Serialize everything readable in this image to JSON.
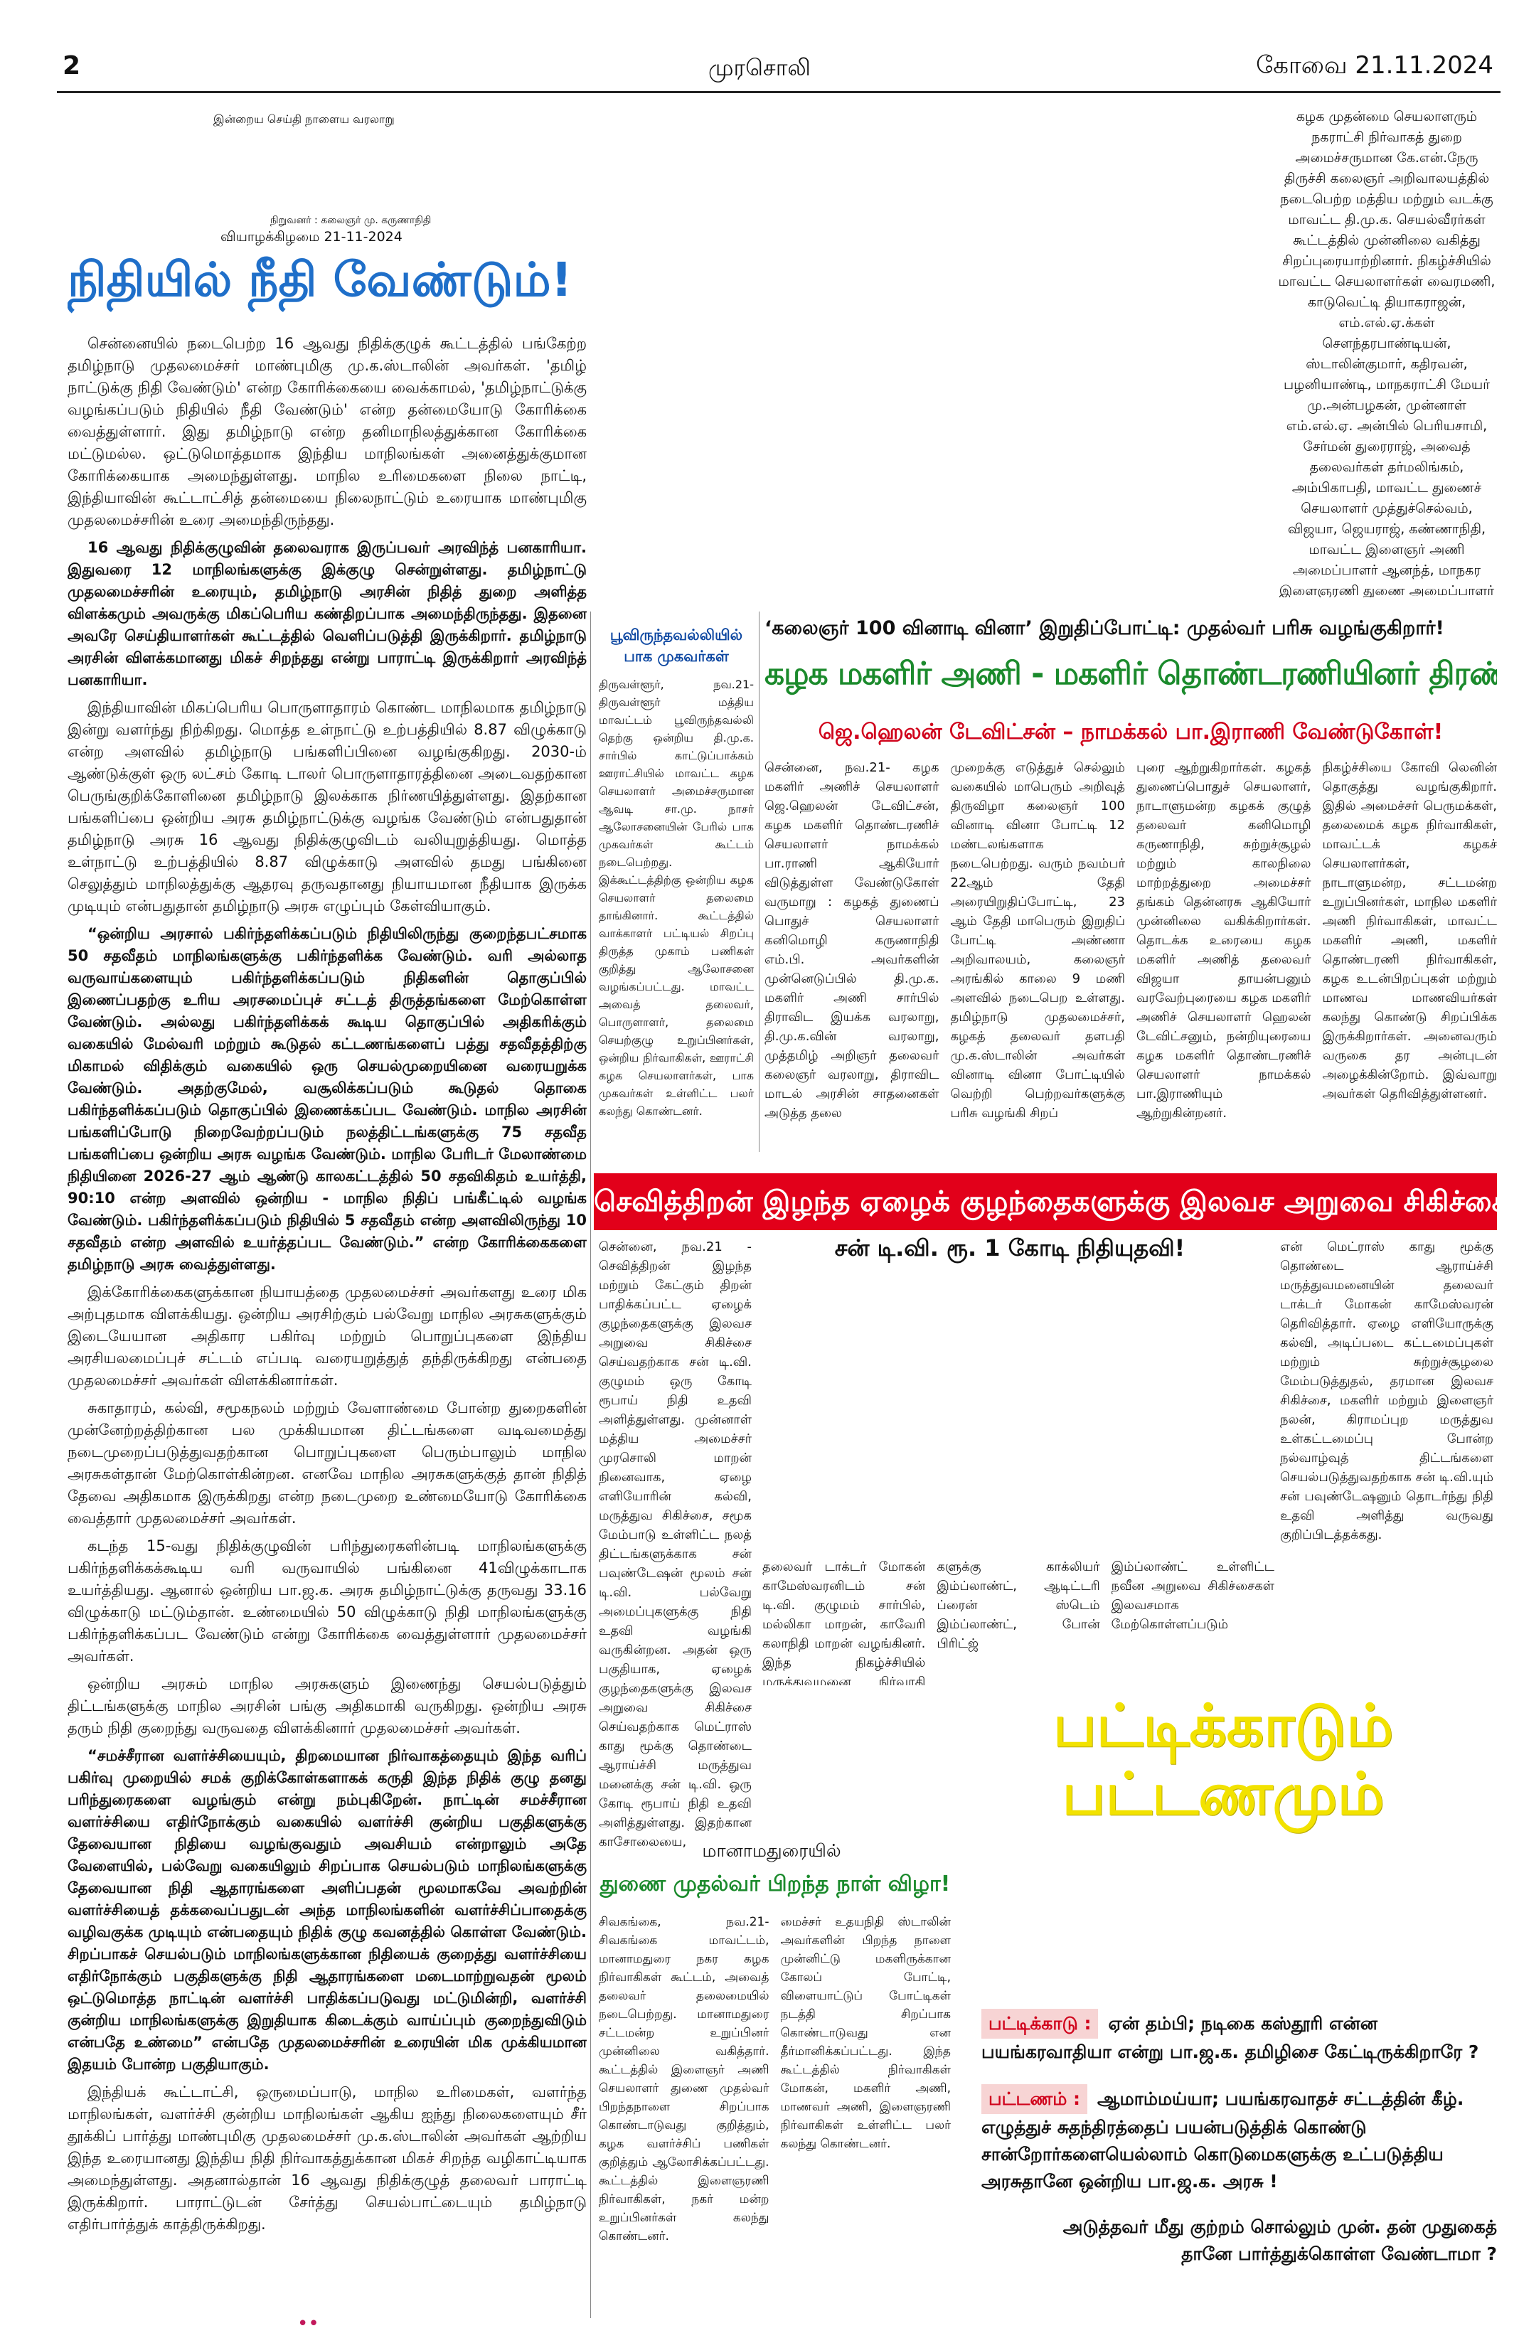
{
  "header": {
    "page": "2",
    "paper": "முரசொலி",
    "dateline": "கோவை 21.11.2024"
  },
  "masthead": {
    "motto": "இன்றைய செய்தி நாளைய வரலாறு",
    "founder": "நிறுவனர் : கலைஞர் மு. கருணாநிதி",
    "day": "வியாழக்கிழமை 21-11-2024"
  },
  "editorial": {
    "title": "நிதியில் நீதி வேண்டும்!",
    "paragraphs": [
      "சென்னையில் நடைபெற்ற 16 ஆவது நிதிக்குழுக் கூட்டத்தில் பங்கேற்ற தமிழ்நாடு முதலமைச்சர் மாண்புமிகு மு.க.ஸ்டாலின் அவர்கள். 'தமிழ் நாட்டுக்கு நிதி வேண்டும்' என்ற கோரிக்கையை வைக்காமல், 'தமிழ்நாட்டுக்கு வழங்கப்படும் நிதியில் நீதி வேண்டும்' என்ற தன்மையோடு கோரிக்கை வைத்துள்ளார். இது தமிழ்நாடு என்ற தனிமாநிலத்துக்கான கோரிக்கை மட்டுமல்ல. ஒட்டுமொத்தமாக இந்திய மாநிலங்கள் அனைத்துக்குமான கோரிக்கையாக அமைந்துள்ளது. மாநில உரிமைகளை நிலை நாட்டி, இந்தியாவின் கூட்டாட்சித் தன்மையை நிலைநாட்டும் உரையாக மாண்புமிகு முதலமைச்சரின் உரை அமைந்திருந்தது.",
      "16 ஆவது நிதிக்குழுவின் தலைவராக இருப்பவர் அரவிந்த் பனகாரியா. இதுவரை 12 மாநிலங்களுக்கு இக்குழு சென்றுள்ளது. தமிழ்நாட்டு முதலமைச்சரின் உரையும், தமிழ்நாடு அரசின் நிதித் துறை அளித்த விளக்கமும் அவருக்கு மிகப்பெரிய கண்திறப்பாக அமைந்திருந்தது. இதனை அவரே செய்தியாளர்கள் கூட்டத்தில் வெளிப்படுத்தி இருக்கிறார். தமிழ்நாடு அரசின் விளக்கமானது மிகச் சிறந்தது என்று பாராட்டி இருக்கிறார் அரவிந்த் பனகாரியா.",
      "இந்தியாவின் மிகப்பெரிய பொருளாதாரம் கொண்ட மாநிலமாக தமிழ்நாடு இன்று வளர்ந்து நிற்கிறது. மொத்த உள்நாட்டு உற்பத்தியில் 8.87 விழுக்காடு என்ற அளவில் தமிழ்நாடு பங்களிப்பினை வழங்குகிறது. 2030-ம் ஆண்டுக்குள் ஒரு லட்சம் கோடி டாலர் பொருளாதாரத்தினை அடைவதற்கான பெருங்குறிக்கோளினை தமிழ்நாடு இலக்காக நிர்ணயித்துள்ளது. இதற்கான பங்களிப்பை ஒன்றிய அரசு தமிழ்நாட்டுக்கு வழங்க வேண்டும் என்பதுதான் தமிழ்நாடு அரசு 16 ஆவது நிதிக்குழுவிடம் வலியுறுத்தியது. மொத்த உள்நாட்டு உற்பத்தியில் 8.87 விழுக்காடு அளவில் தமது பங்கினை செலுத்தும் மாநிலத்துக்கு ஆதரவு தருவதானது நியாயமான நீதியாக இருக்க முடியும் என்பதுதான் தமிழ்நாடு அரசு எழுப்பும் கேள்வியாகும்.",
      "“ஒன்றிய அரசால் பகிர்ந்தளிக்கப்படும் நிதியிலிருந்து குறைந்தபட்சமாக 50 சதவீதம் மாநிலங்களுக்கு பகிர்ந்தளிக்க வேண்டும். வரி அல்லாத வருவாய்களையும் பகிர்ந்தளிக்கப்படும் நிதிகளின் தொகுப்பில் இணைப்பதற்கு உரிய அரசமைப்புச் சட்டத் திருத்தங்களை மேற்கொள்ள வேண்டும். அல்லது பகிர்ந்தளிக்கக் கூடிய தொகுப்பில் அதிகரிக்கும் வகையில் மேல்வரி மற்றும் கூடுதல் கட்டணங்களைப் பத்து சதவீதத்திற்கு மிகாமல் விதிக்கும் வகையில் ஒரு செயல்முறையினை வரையறுக்க வேண்டும். அதற்குமேல், வசூலிக்கப்படும் கூடுதல் தொகை பகிர்ந்தளிக்கப்படும் தொகுப்பில் இணைக்கப்பட வேண்டும். மாநில அரசின் பங்களிப்போடு நிறைவேற்றப்படும் நலத்திட்டங்களுக்கு 75 சதவீத பங்களிப்பை ஒன்றிய அரசு வழங்க வேண்டும். மாநில பேரிடர் மேலாண்மை நிதியினை 2026-27 ஆம் ஆண்டு காலகட்டத்தில் 50 சதவிகிதம் உயர்த்தி, 90:10 என்ற அளவில் ஒன்றிய - மாநில நிதிப் பங்கீட்டில் வழங்க வேண்டும். பகிர்ந்தளிக்கப்படும் நிதியில் 5 சதவீதம் என்ற அளவிலிருந்து 10 சதவீதம் என்ற அளவில் உயர்த்தப்பட வேண்டும்.” என்ற கோரிக்கைகளை தமிழ்நாடு அரசு வைத்துள்ளது.",
      "இக்கோரிக்கைகளுக்கான நியாயத்தை முதலமைச்சர் அவர்களது உரை மிக அற்புதமாக விளக்கியது. ஒன்றிய அரசிற்கும் பல்வேறு மாநில அரசுகளுக்கும் இடையேயான அதிகார பகிர்வு மற்றும் பொறுப்புகளை இந்திய அரசியலமைப்புச் சட்டம் எப்படி வரையறுத்துத் தந்திருக்கிறது என்பதை முதலமைச்சர் அவர்கள் விளக்கினார்கள்.",
      "சுகாதாரம், கல்வி, சமூகநலம் மற்றும் வேளாண்மை போன்ற துறைகளின் முன்னேற்றத்திற்கான பல முக்கியமான திட்டங்களை வடிவமைத்து நடைமுறைப்படுத்துவதற்கான பொறுப்புகளை பெரும்பாலும் மாநில அரசுகள்தான் மேற்கொள்கின்றன. எனவே மாநில அரசுகளுக்குத் தான் நிதித் தேவை அதிகமாக இருக்கிறது என்ற நடைமுறை உண்மையோடு கோரிக்கை வைத்தார் முதலமைச்சர் அவர்கள்.",
      "கடந்த 15-வது நிதிக்குழுவின் பரிந்துரைகளின்படி மாநிலங்களுக்கு பகிர்ந்தளிக்கக்கூடிய வரி வருவாயில் பங்கினை 41விழுக்காடாக உயர்த்தியது. ஆனால் ஒன்றிய பா.ஜ.க. அரசு தமிழ்நாட்டுக்கு தருவது 33.16 விழுக்காடு மட்டும்தான். உண்மையில் 50 விழுக்காடு நிதி மாநிலங்களுக்கு பகிர்ந்தளிக்கப்பட வேண்டும் என்று கோரிக்கை வைத்துள்ளார் முதலமைச்சர் அவர்கள்.",
      "ஒன்றிய அரசும் மாநில அரசுகளும் இணைந்து செயல்படுத்தும் திட்டங்களுக்கு மாநில அரசின் பங்கு அதிகமாகி வருகிறது. ஒன்றிய அரசு தரும் நிதி குறைந்து வருவதை விளக்கினார் முதலமைச்சர் அவர்கள்.",
      "“சமச்சீரான வளர்ச்சியையும், திறமையான நிர்வாகத்தையும் இந்த வரிப் பகிர்வு முறையில் சமக் குறிக்கோள்களாகக் கருதி இந்த நிதிக் குழு தனது பரிந்துரைகளை வழங்கும் என்று நம்புகிறேன். நாட்டின் சமச்சீரான வளர்ச்சியை எதிர்நோக்கும் வகையில் வளர்ச்சி குன்றிய பகுதிகளுக்கு தேவையான நிதியை வழங்குவதும் அவசியம் என்றாலும் அதே வேளையில், பல்வேறு வகையிலும் சிறப்பாக செயல்படும் மாநிலங்களுக்கு தேவையான நிதி ஆதாரங்களை அளிப்பதன் மூலமாகவே அவற்றின் வளர்ச்சியைத் தக்கவைப்பதுடன் அந்த மாநிலங்களின் வளர்ச்சிப்பாதைக்கு வழிவகுக்க முடியும் என்பதையும் நிதிக் குழு கவனத்தில் கொள்ள வேண்டும். சிறப்பாகச் செயல்படும் மாநிலங்களுக்கான நிதியைக் குறைத்து வளர்ச்சியை எதிர்நோக்கும் பகுதிகளுக்கு நிதி ஆதாரங்களை மடைமாற்றுவதன் மூலம் ஒட்டுமொத்த நாட்டின் வளர்ச்சி பாதிக்கப்படுவது மட்டுமின்றி, வளர்ச்சி குன்றிய மாநிலங்களுக்கு இறுதியாக கிடைக்கும் வாய்ப்பும் குறைந்துவிடும் என்பதே உண்மை” என்பதே முதலமைச்சரின் உரையின் மிக முக்கியமான இதயம் போன்ற பகுதியாகும்.",
      "இந்தியக் கூட்டாட்சி, ஒருமைப்பாடு, மாநில உரிமைகள், வளர்ந்த மாநிலங்கள், வளர்ச்சி குன்றிய மாநிலங்கள் ஆகிய ஐந்து நிலைகளையும் சீர் தூக்கிப் பார்த்து மாண்புமிகு முதலமைச்சர் மு.க.ஸ்டாலின் அவர்கள் ஆற்றிய இந்த உரையானது இந்திய நிதி நிர்வாகத்துக்கான மிகச் சிறந்த வழிகாட்டியாக அமைந்துள்ளது. அதனால்தான் 16 ஆவது நிதிக்குழுத் தலைவர் பாராட்டி இருக்கிறார். பாராட்டுடன் சேர்த்து செயல்பாட்டையும் தமிழ்நாடு எதிர்பார்த்துக் காத்திருக்கிறது."
    ]
  },
  "caption": "கழக முதன்மை செயலாளரும் நகராட்சி நிர்வாகத் துறை அமைச்சருமான கே.என்.நேரு திருச்சி கலைஞர் அறிவாலயத்தில் நடைபெற்ற மத்திய மற்றும் வடக்கு மாவட்ட தி.மு.க. செயல்வீரர்கள் கூட்டத்தில் முன்னிலை வகித்து சிறப்புரையாற்றினார். நிகழ்ச்சியில் மாவட்ட செயலாளர்கள் வைரமணி, காடுவெட்டி தியாகராஜன், எம்.எல்.ஏ.க்கள் சௌந்தரபாண்டியன், ஸ்டாலின்குமார், கதிரவன், பழனியாண்டி, மாநகராட்சி மேயர் மு.அன்பழகன், முன்னாள் எம்.எல்.ஏ. அன்பில் பெரியசாமி, சேர்மன் துரைராஜ், அவைத் தலைவர்கள் தர்மலிங்கம், அம்பிகாபதி, மாவட்ட துணைச் செயலாளர் முத்துச்செல்வம், விஜயா, ஜெயராஜ், கண்ணாநிதி, மாவட்ட இளைஞர் அணி அமைப்பாளர் ஆனந்த், மாநகர இளைஞரணி துணை அமைப்பாளர் ஆனந்த், சிவந்தி, லிங்கம் உட்பட பலர் கலந்து கொண்டனர்.",
  "poonamallee": {
    "title": [
      "பூவிருந்தவல்லியில்",
      "பாக முகவர்கள் கூட்டம்!"
    ],
    "body": "திருவள்ளூர், நவ.21- திருவள்ளூர் மத்திய மாவட்டம் பூவிருந்தவல்லி தெற்கு ஒன்றிய தி.மு.க. சார்பில் காட்டுப்பாக்கம் ஊராட்சியில் மாவட்ட கழக செயலாளர் அமைச்சருமான ஆவடி சா.மு. நாசர் ஆலோசனையின் பேரில் பாக முகவர்கள் கூட்டம் நடைபெற்றது. இக்கூட்டத்திற்கு ஒன்றிய கழக செயலாளர் தலைமை தாங்கினார். கூட்டத்தில் வாக்காளர் பட்டியல் சிறப்பு திருத்த முகாம் பணிகள் குறித்து ஆலோசனை வழங்கப்பட்டது. மாவட்ட அவைத் தலைவர், பொருளாளர், தலைமை செயற்குழு உறுப்பினர்கள், ஒன்றிய நிர்வாகிகள், ஊராட்சி கழக செயலாளர்கள், பாக முகவர்கள் உள்ளிட்ட பலர் கலந்து கொண்டனர்."
  },
  "quiz": {
    "kicker": "‘கலைஞர் 100 வினாடி வினா’ இறுதிப்போட்டி: முதல்வர் பரிசு வழங்குகிறார்!",
    "headline": "கழக மகளிர் அணி - மகளிர் தொண்டரணியினர் திரண்டு வாரீர்!",
    "subhead": "ஜெ.ஹெலன் டேவிட்சன் – நாமக்கல் பா.இராணி வேண்டுகோள்!",
    "columns": [
      "சென்னை, நவ.21- கழக மகளிர் அணிச் செயலாளர் ஜெ.ஹெலன் டேவிட்சன், கழக மகளிர் தொண்டரணிச் செயலாளர் நாமக்கல் பா.ராணி ஆகியோர் விடுத்துள்ள வேண்டுகோள் வருமாறு : கழகத் துணைப் பொதுச் செயலாளர் கனிமொழி கருணாநிதி எம்.பி. அவர்களின் முன்னெடுப்பில் தி.மு.க. மகளிர் அணி சார்பில் திராவிட இயக்க வரலாறு, தி.மு.க.வின் வரலாறு, முத்தமிழ் அறிஞர் தலைவர் கலைஞர் வரலாறு, திராவிட மாடல் அரசின் சாதனைகள் அடுத்த தலை",
      "முறைக்கு எடுத்துச் செல்லும் வகையில் மாபெரும் அறிவுத் திருவிழா கலைஞர் 100 வினாடி வினா போட்டி 12 மண்டலங்களாக நடைபெற்றது. வரும் நவம்பர் 22ஆம் தேதி அரையிறுதிப்போட்டி, 23 ஆம் தேதி மாபெரும் இறுதிப் போட்டி அண்ணா அறிவாலயம், கலைஞர் அரங்கில் காலை 9 மணி அளவில் நடைபெற உள்ளது. தமிழ்நாடு முதலமைச்சர், கழகத் தலைவர் தளபதி மு.க.ஸ்டாலின் அவர்கள் வினாடி வினா போட்டியில் வெற்றி பெற்றவர்களுக்கு பரிசு வழங்கி சிறப்",
      "புரை ஆற்றுகிறார்கள். கழகத் துணைப்பொதுச் செயலாளர், நாடாளுமன்ற கழகக் குழுத் தலைவர் கனிமொழி கருணாநிதி, சுற்றுச்சூழல் மற்றும் காலநிலை மாற்றத்துறை அமைச்சர் தங்கம் தென்னரசு ஆகியோர் முன்னிலை வகிக்கிறார்கள். தொடக்க உரையை கழக மகளிர் அணித் தலைவர் விஜயா தாயன்பனும் வரவேற்புரையை கழக மகளிர் அணிச் செயலாளர் ஹெலன் டேவிட்சனும், நன்றியுரையை கழக மகளிர் தொண்டரணிச் செயலாளர் நாமக்கல் பா.இராணியும் ஆற்றுகின்றனர்.",
      "நிகழ்ச்சியை கோவி லெனின் தொகுத்து வழங்குகிறார். இதில் அமைச்சர் பெருமக்கள், தலைமைக் கழக நிர்வாகிகள், மாவட்டக் கழகச் செயலாளர்கள், நாடாளுமன்ற, சட்டமன்ற உறுப்பினர்கள், மாநில மகளிர் அணி நிர்வாகிகள், மாவட்ட மகளிர் அணி, மகளிர் தொண்டரணி நிர்வாகிகள், கழக உடன்பிறப்புகள் மற்றும் மாணவ மாணவியர்கள் கலந்து கொண்டு சிறப்பிக்க இருக்கிறார்கள். அனைவரும் வருகை தர அன்புடன் அழைக்கின்றோம். இவ்வாறு அவர்கள் தெரிவித்துள்ளனர்."
    ]
  },
  "surgery": {
    "headline": "செவித்திறன் இழந்த ஏழைக் குழந்தைகளுக்கு இலவச அறுவை சிகிச்சை!",
    "subhead": "சன் டி.வி. ரூ. 1 கோடி நிதியுதவி!",
    "left": "சென்னை, நவ.21 - செவித்திறன் இழந்த மற்றும் கேட்கும் திறன் பாதிக்கப்பட்ட ஏழைக் குழந்தைகளுக்கு இலவச அறுவை சிகிச்சை செய்வதற்காக சன் டி.வி. குழுமம் ஒரு கோடி ரூபாய் நிதி உதவி அளித்துள்ளது. முன்னாள் மத்திய அமைச்சர் முரசொலி மாறன் நினைவாக, ஏழை எளியோரின் கல்வி, மருத்துவ சிகிச்சை, சமூக மேம்பாடு உள்ளிட்ட நலத் திட்டங்களுக்காக சன் பவுண்டேஷன் மூலம் சன் டி.வி. பல்வேறு அமைப்புகளுக்கு நிதி உதவி வழங்கி வருகின்றன. அதன் ஒரு பகுதியாக, ஏழைக் குழந்தைகளுக்கு இலவச அறுவை சிகிச்சை செய்வதற்காக மெட்ராஸ் காது மூக்கு தொண்டை ஆராய்ச்சி மருத்துவ மனைக்கு சன் டி.வி. ஒரு கோடி ரூபாய் நிதி உதவி அளித்துள்ளது. இதற்கான காசோலையை, மருத்துவமனையின்",
    "right": "என் மெட்ராஸ் காது மூக்கு தொண்டை ஆராய்ச்சி மருத்துவமனையின் தலைவர் டாக்டர் மோகன் காமேஸ்வரன் தெரிவித்தார். ஏழை எளியோருக்கு கல்வி, அடிப்படை கட்டமைப்புகள் மற்றும் சுற்றுச்சூழலை மேம்படுத்துதல், தரமான இலவச சிகிச்சை, மகளிர் மற்றும் இளைஞர் நலன், கிராமப்புற மருத்துவ உள்கட்டமைப்பு போன்ற நல்வாழ்வுத் திட்டங்களை செயல்படுத்துவதற்காக சன் டி.வி.யும் சன் பவுண்டேஷனும் தொடர்ந்து நிதி உதவி அளித்து வருவது குறிப்பிடத்தக்கது.",
    "columns": [
      "தலைவர் டாக்டர் மோகன் காமேஸ்வரனிடம் சன் டி.வி. குழுமம் சார்பில், மல்லிகா மாறன், காவேரி கலாநிதி மாறன் வழங்கினர். இந்த நிகழ்ச்சியில் மருத்துவமனை நிர்வாகி ஆனந்த் குமார், ஜெகநாதன், இந்திரா காமேஸ்வரன், உமா மகேஸ்வரி கலந்துகொண்டனர். இந்த நிதியின் மூலம் பிறவியிலேயே செவித்திறன் இழந்த மற்றும் கேட்கும் திறன் பாதிக்கப்பட்ட 11 ஏழைக் குழந்தை",
      "களுக்கு காக்லியர் இம்ப்லாண்ட், ஆடிட்டரி ப்ரைன் ஸ்டெம் இம்ப்லாண்ட், போன் பிரிட்ஜ்",
      "இம்ப்லாண்ட் உள்ளிட்ட நவீன அறுவை சிகிச்சைகள் இலவசமாக மேற்கொள்ளப்படும்"
    ]
  },
  "pattikadu": {
    "title": [
      "பட்டிக்காடும்",
      "பட்டணமும்"
    ],
    "dialogue": [
      {
        "speaker": "பட்டிக்காடு :",
        "text": "ஏன் தம்பி; நடிகை கஸ்தூரி என்ன பயங்கரவாதியா என்று பா.ஜ.க. தமிழிசை கேட்டிருக்கிறாரே ?"
      },
      {
        "speaker": "பட்டணம் :",
        "text": "ஆமாம்மய்யா; பயங்கரவாதச் சட்டத்தின் கீழ். எழுத்துச் சுதந்திரத்தைப் பயன்படுத்திக் கொண்டு சான்றோர்களையெல்லாம் கொடுமைகளுக்கு உட்படுத்திய அரசுதானே ஒன்றிய பா.ஜ.க. அரசு !"
      }
    ],
    "closing": "அடுத்தவர் மீது குற்றம் சொல்லும் முன். தன் முதுகைத் தானே பார்த்துக்கொள்ள வேண்டாமா ?"
  },
  "manamadurai": {
    "kicker": "மானாமதுரையில்",
    "headline": "துணை முதல்வர் பிறந்த நாள் விழா!",
    "columns": [
      "சிவகங்கை, நவ.21- சிவகங்கை மாவட்டம், மானாமதுரை நகர கழக நிர்வாகிகள் கூட்டம், அவைத் தலைவர் தலைமையில் நடைபெற்றது. மானாமதுரை சட்டமன்ற உறுப்பினர் முன்னிலை வகித்தார். கூட்டத்தில் இளைஞர் அணி செயலாளர் துணை முதல்வர் பிறந்தநாளை சிறப்பாக கொண்டாடுவது குறித்தும், கழக வளர்ச்சிப் பணிகள் குறித்தும் ஆலோசிக்கப்பட்டது. கூட்டத்தில் இளைஞரணி நிர்வாகிகள், நகர் மன்ற உறுப்பினர்கள் கலந்து கொண்டனர்.",
      "மைச்சர் உதயநிதி ஸ்டாலின் அவர்களின் பிறந்த நாளை முன்னிட்டு மகளிருக்கான கோலப் போட்டி, விளையாட்டுப் போட்டிகள் நடத்தி சிறப்பாக கொண்டாடுவது என தீர்மானிக்கப்பட்டது. இந்த கூட்டத்தில் நிர்வாகிகள் மோகன், மகளிர் அணி, மாணவர் அணி, இளைஞரணி நிர்வாகிகள் உள்ளிட்ட பலர் கலந்து கொண்டனர்."
    ]
  }
}
